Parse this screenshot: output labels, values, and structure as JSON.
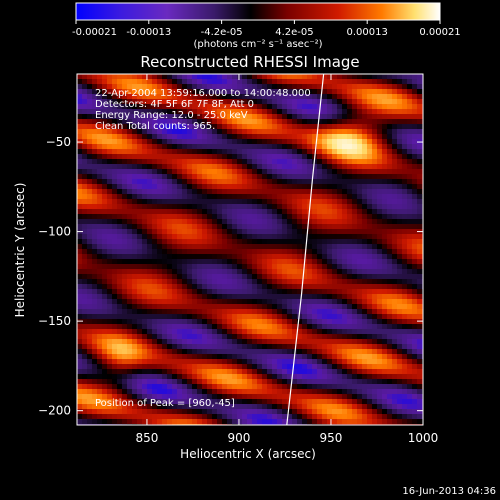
{
  "colorbar": {
    "ticks": [
      "-0.00021",
      "-0.00013",
      "-4.2e-05",
      "4.2e-05",
      "0.00013",
      "0.00021"
    ],
    "unit_label": "(photons cm⁻² s⁻¹ asec⁻²)",
    "range": [
      -0.00021,
      0.00021
    ],
    "colormap": [
      "#0000ff",
      "#5a1aa6",
      "#3a1a6a",
      "#000000",
      "#7a0000",
      "#d01a00",
      "#ff7a00",
      "#ffe070",
      "#ffffff"
    ]
  },
  "chart_data": {
    "type": "heatmap",
    "title": "Reconstructed RHESSI Image",
    "xlabel": "Heliocentric X (arcsec)",
    "ylabel": "Heliocentric Y (arcsec)",
    "xlim": [
      812,
      1000
    ],
    "ylim": [
      -208,
      -12
    ],
    "x_ticks": [
      850,
      900,
      950,
      1000
    ],
    "y_ticks": [
      -50,
      -100,
      -150,
      -200
    ],
    "annotations": [
      "22-Apr-2004 13:59:16.000 to 14:00:48.000",
      "Detectors: 4F 5F 6F 7F 8F, Att 0",
      "Energy Range: 12.0 - 25.0 keV",
      "Clean     Total counts: 965."
    ],
    "peak_label": "Position of Peak = [960,-45]",
    "peak_position": [
      960,
      -45
    ],
    "limb_curve": [
      [
        946,
        -12
      ],
      [
        940,
        -70
      ],
      [
        934,
        -135
      ],
      [
        926,
        -208
      ]
    ],
    "grid": false
  },
  "timestamp": "16-Jun-2013 04:36"
}
